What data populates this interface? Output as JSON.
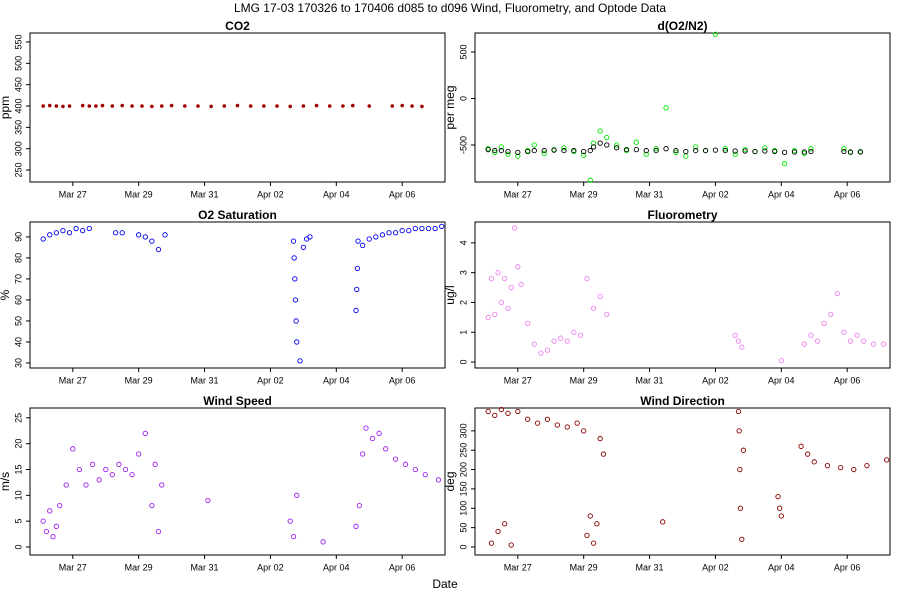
{
  "title": "LMG  17-03    170326 to 170406    d085 to d096   Wind, Fluorometry, and Optode Data",
  "xlabel": "Date",
  "chart_data": [
    {
      "type": "scatter",
      "title": "CO2",
      "ylabel": "ppm",
      "marker": "filled",
      "x": [
        26.1,
        26.3,
        26.5,
        26.7,
        26.9,
        27.3,
        27.5,
        27.7,
        27.9,
        28.2,
        28.5,
        28.8,
        29.1,
        29.4,
        29.7,
        30.0,
        30.4,
        30.8,
        31.2,
        31.6,
        32.0,
        32.4,
        32.8,
        33.2,
        33.6,
        34.0,
        34.4,
        34.8,
        35.2,
        35.5,
        36.0,
        36.7,
        37.0,
        37.3,
        37.6
      ],
      "series": [
        {
          "color": "#a00000",
          "values": [
            400,
            401,
            400,
            399,
            400,
            401,
            400,
            400,
            401,
            400,
            401,
            400,
            400,
            399,
            400,
            401,
            400,
            400,
            399,
            400,
            401,
            400,
            400,
            400,
            399,
            400,
            401,
            400,
            400,
            401,
            400,
            400,
            401,
            400,
            399
          ]
        }
      ],
      "xlim": [
        25.7,
        38.3
      ],
      "ylim": [
        222,
        571
      ],
      "xticks": [
        {
          "value": 27,
          "label": "Mar 27"
        },
        {
          "value": 29,
          "label": "Mar 29"
        },
        {
          "value": 31,
          "label": "Mar 31"
        },
        {
          "value": 33,
          "label": "Apr 02"
        },
        {
          "value": 35,
          "label": "Apr 04"
        },
        {
          "value": 37,
          "label": "Apr 06"
        }
      ],
      "yticks": [
        250,
        300,
        350,
        400,
        450,
        500,
        550
      ]
    },
    {
      "type": "scatter",
      "title": "d(O2/N2)",
      "ylabel": "per meg",
      "marker": "open",
      "x": [
        26.1,
        26.3,
        26.5,
        26.7,
        27.0,
        27.3,
        27.5,
        27.8,
        28.1,
        28.4,
        28.7,
        29.0,
        29.2,
        29.3,
        29.5,
        29.7,
        30.0,
        30.3,
        30.6,
        30.9,
        31.2,
        31.5,
        31.8,
        32.1,
        32.4,
        32.7,
        33.0,
        33.3,
        33.6,
        33.9,
        34.2,
        34.5,
        34.8,
        35.1,
        35.4,
        35.7,
        35.9,
        36.9,
        37.1,
        37.4
      ],
      "series": [
        {
          "color": "#00ee00",
          "values": [
            -540,
            -580,
            -520,
            -600,
            -620,
            -560,
            -500,
            -590,
            -550,
            -530,
            -570,
            -610,
            -880,
            -480,
            -350,
            -420,
            -500,
            -560,
            -470,
            -600,
            -540,
            -100,
            -580,
            -620,
            -520,
            -560,
            690,
            -540,
            -600,
            -550,
            -570,
            -530,
            -560,
            -700,
            -560,
            -590,
            -540,
            -540,
            -580,
            -570
          ]
        },
        {
          "color": "#000000",
          "values": [
            -550,
            -560,
            -560,
            -570,
            -580,
            -570,
            -560,
            -560,
            -555,
            -560,
            -560,
            -570,
            -560,
            -520,
            -480,
            -500,
            -530,
            -550,
            -550,
            -560,
            -560,
            -540,
            -560,
            -570,
            -560,
            -560,
            -555,
            -560,
            -565,
            -565,
            -570,
            -565,
            -570,
            -580,
            -575,
            -575,
            -570,
            -570,
            -575,
            -575
          ]
        }
      ],
      "xlim": [
        25.7,
        38.3
      ],
      "ylim": [
        -898,
        704
      ],
      "xticks": [
        {
          "value": 27,
          "label": "Mar 27"
        },
        {
          "value": 29,
          "label": "Mar 29"
        },
        {
          "value": 31,
          "label": "Mar 31"
        },
        {
          "value": 33,
          "label": "Apr 02"
        },
        {
          "value": 35,
          "label": "Apr 04"
        },
        {
          "value": 37,
          "label": "Apr 06"
        }
      ],
      "yticks": [
        -500,
        0,
        500
      ]
    },
    {
      "type": "scatter",
      "title": "O2 Saturation",
      "ylabel": "%",
      "marker": "open",
      "x": [
        26.1,
        26.3,
        26.5,
        26.7,
        26.9,
        27.1,
        27.3,
        27.5,
        28.3,
        28.5,
        29.0,
        29.2,
        29.4,
        29.6,
        29.8,
        33.7,
        33.72,
        33.74,
        33.76,
        33.78,
        33.8,
        33.9,
        34.0,
        34.1,
        34.2,
        35.6,
        35.62,
        35.64,
        35.66,
        35.8,
        36.0,
        36.2,
        36.4,
        36.6,
        36.8,
        37.0,
        37.2,
        37.4,
        37.6,
        37.8,
        38.0,
        38.2
      ],
      "series": [
        {
          "color": "#0000ee",
          "values": [
            89,
            91,
            92,
            93,
            92,
            94,
            93,
            94,
            92,
            92,
            91,
            90,
            88,
            84,
            91,
            88,
            80,
            70,
            60,
            50,
            40,
            31,
            85,
            89,
            90,
            55,
            65,
            75,
            88,
            86,
            89,
            90,
            91,
            92,
            92,
            93,
            93,
            94,
            94,
            94,
            94,
            95
          ]
        }
      ],
      "xlim": [
        25.7,
        38.3
      ],
      "ylim": [
        27.6,
        97.1
      ],
      "xticks": [
        {
          "value": 27,
          "label": "Mar 27"
        },
        {
          "value": 29,
          "label": "Mar 29"
        },
        {
          "value": 31,
          "label": "Mar 31"
        },
        {
          "value": 33,
          "label": "Apr 02"
        },
        {
          "value": 35,
          "label": "Apr 04"
        },
        {
          "value": 37,
          "label": "Apr 06"
        }
      ],
      "yticks": [
        30,
        40,
        50,
        60,
        70,
        80,
        90
      ]
    },
    {
      "type": "scatter",
      "title": "Fluorometry",
      "ylabel": "ug/l",
      "marker": "open",
      "x": [
        26.1,
        26.2,
        26.3,
        26.4,
        26.5,
        26.6,
        26.7,
        26.8,
        26.9,
        27.0,
        27.1,
        27.3,
        27.5,
        27.7,
        27.9,
        28.1,
        28.3,
        28.5,
        28.7,
        28.9,
        29.1,
        29.3,
        29.5,
        29.7,
        33.6,
        33.7,
        33.8,
        35.0,
        35.7,
        35.9,
        36.1,
        36.3,
        36.5,
        36.7,
        36.9,
        37.1,
        37.3,
        37.5,
        37.8,
        38.1
      ],
      "series": [
        {
          "color": "#ee82ee",
          "values": [
            1.5,
            2.8,
            1.6,
            3.0,
            2.0,
            2.8,
            1.8,
            2.5,
            4.5,
            3.2,
            2.6,
            1.3,
            0.6,
            0.3,
            0.4,
            0.7,
            0.8,
            0.7,
            1.0,
            0.9,
            2.8,
            1.8,
            2.2,
            1.6,
            0.9,
            0.7,
            0.5,
            0.05,
            0.6,
            0.9,
            0.7,
            1.3,
            1.6,
            2.3,
            1.0,
            0.7,
            0.9,
            0.7,
            0.6,
            0.6
          ]
        }
      ],
      "xlim": [
        25.7,
        38.3
      ],
      "ylim": [
        -0.2,
        4.7
      ],
      "xticks": [
        {
          "value": 27,
          "label": "Mar 27"
        },
        {
          "value": 29,
          "label": "Mar 29"
        },
        {
          "value": 31,
          "label": "Mar 31"
        },
        {
          "value": 33,
          "label": "Apr 02"
        },
        {
          "value": 35,
          "label": "Apr 04"
        },
        {
          "value": 37,
          "label": "Apr 06"
        }
      ],
      "yticks": [
        0,
        1,
        2,
        3,
        4
      ]
    },
    {
      "type": "scatter",
      "title": "Wind Speed",
      "ylabel": "m/s",
      "marker": "open",
      "x": [
        26.1,
        26.2,
        26.3,
        26.4,
        26.5,
        26.6,
        26.8,
        27.0,
        27.2,
        27.4,
        27.6,
        27.8,
        28.0,
        28.2,
        28.4,
        28.6,
        28.8,
        29.0,
        29.2,
        29.4,
        29.5,
        29.6,
        29.7,
        31.1,
        33.6,
        33.7,
        33.8,
        34.6,
        35.6,
        35.7,
        35.8,
        35.9,
        36.1,
        36.3,
        36.5,
        36.8,
        37.1,
        37.4,
        37.7,
        38.1
      ],
      "series": [
        {
          "color": "#a020f0",
          "values": [
            5,
            3,
            7,
            2,
            4,
            8,
            12,
            19,
            15,
            12,
            16,
            13,
            15,
            14,
            16,
            15,
            14,
            18,
            22,
            8,
            16,
            3,
            12,
            9,
            5,
            2,
            10,
            1,
            4,
            8,
            18,
            23,
            21,
            22,
            19,
            17,
            16,
            15,
            14,
            13
          ]
        }
      ],
      "xlim": [
        25.7,
        38.3
      ],
      "ylim": [
        -1.55,
        26.9
      ],
      "xticks": [
        {
          "value": 27,
          "label": "Mar 27"
        },
        {
          "value": 29,
          "label": "Mar 29"
        },
        {
          "value": 31,
          "label": "Mar 31"
        },
        {
          "value": 33,
          "label": "Apr 02"
        },
        {
          "value": 35,
          "label": "Apr 04"
        },
        {
          "value": 37,
          "label": "Apr 06"
        }
      ],
      "yticks": [
        0,
        5,
        10,
        15,
        20,
        25
      ]
    },
    {
      "type": "scatter",
      "title": "Wind Direction",
      "ylabel": "deg",
      "marker": "open",
      "x": [
        26.1,
        26.2,
        26.3,
        26.4,
        26.5,
        26.6,
        26.7,
        26.8,
        27.0,
        27.3,
        27.6,
        27.9,
        28.2,
        28.5,
        28.8,
        29.0,
        29.1,
        29.2,
        29.3,
        29.4,
        29.5,
        29.6,
        31.4,
        33.7,
        33.72,
        33.74,
        33.76,
        33.8,
        33.85,
        34.9,
        34.95,
        35.0,
        35.6,
        35.8,
        36.0,
        36.4,
        36.8,
        37.2,
        37.6,
        38.2
      ],
      "series": [
        {
          "color": "#8b0000",
          "values": [
            350,
            10,
            340,
            40,
            355,
            60,
            345,
            5,
            350,
            330,
            320,
            330,
            315,
            310,
            320,
            300,
            30,
            80,
            10,
            60,
            280,
            240,
            65,
            350,
            300,
            200,
            100,
            20,
            250,
            130,
            100,
            80,
            260,
            240,
            220,
            210,
            205,
            200,
            210,
            225
          ]
        }
      ],
      "xlim": [
        25.7,
        38.3
      ],
      "ylim": [
        -20.7,
        359
      ],
      "xticks": [
        {
          "value": 27,
          "label": "Mar 27"
        },
        {
          "value": 29,
          "label": "Mar 29"
        },
        {
          "value": 31,
          "label": "Mar 31"
        },
        {
          "value": 33,
          "label": "Apr 02"
        },
        {
          "value": 35,
          "label": "Apr 04"
        },
        {
          "value": 37,
          "label": "Apr 06"
        }
      ],
      "yticks": [
        0,
        50,
        100,
        150,
        200,
        250,
        300
      ]
    }
  ]
}
